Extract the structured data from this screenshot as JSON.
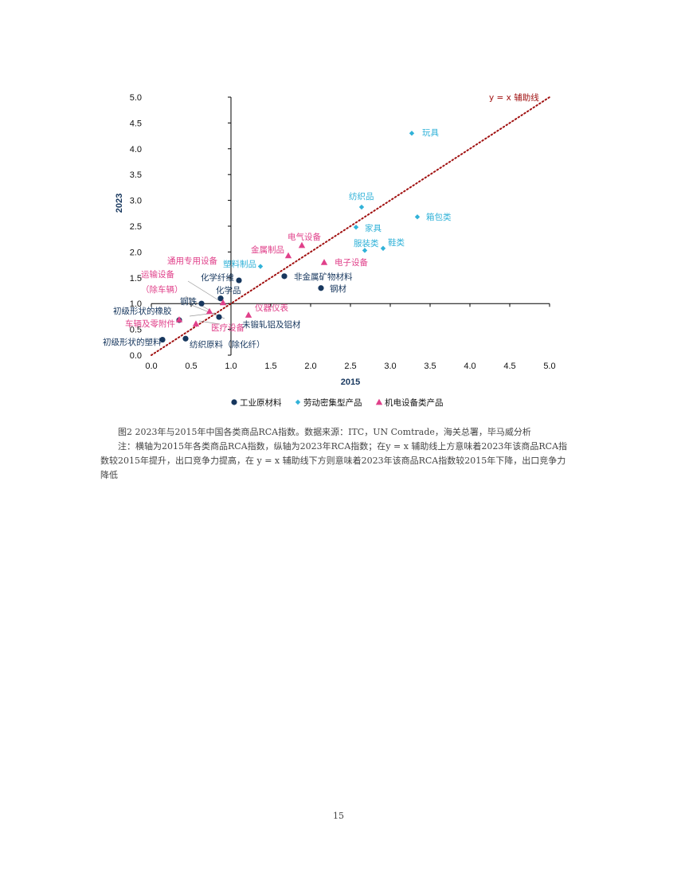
{
  "chart_data": {
    "type": "scatter",
    "xlabel": "2015",
    "ylabel": "2023",
    "xlim": [
      0,
      5
    ],
    "ylim": [
      0,
      5
    ],
    "x_ticks": [
      "0.0",
      "0.5",
      "1.0",
      "1.5",
      "2.0",
      "2.5",
      "3.0",
      "3.5",
      "4.0",
      "4.5",
      "5.0"
    ],
    "y_ticks": [
      "0.0",
      "0.5",
      "1.0",
      "1.5",
      "2.0",
      "2.5",
      "3.0",
      "3.5",
      "4.0",
      "4.5",
      "5.0"
    ],
    "grid": false,
    "legend_position": "bottom",
    "reference_line": {
      "label": "y = x 辅助线",
      "x": [
        0,
        5
      ],
      "y": [
        0,
        5
      ],
      "color": "#a01010",
      "style": "dotted"
    },
    "series": [
      {
        "name": "工业原材料",
        "marker": "circle",
        "color": "#17375e",
        "points": [
          {
            "label": "化学纤维",
            "x": 1.1,
            "y": 1.45
          },
          {
            "label": "化学品",
            "x": 0.87,
            "y": 1.1
          },
          {
            "label": "非金属矿物材料",
            "x": 1.67,
            "y": 1.53
          },
          {
            "label": "钢材",
            "x": 2.13,
            "y": 1.3
          },
          {
            "label": "钢铁",
            "x": 0.63,
            "y": 1.0
          },
          {
            "label": "初级形状的橡胶",
            "x": 0.35,
            "y": 0.68
          },
          {
            "label": "未锻轧铝及铝材",
            "x": 0.85,
            "y": 0.74
          },
          {
            "label": "初级形状的塑料",
            "x": 0.14,
            "y": 0.3
          },
          {
            "label": "纺织原料（除化纤）",
            "x": 0.43,
            "y": 0.32
          }
        ]
      },
      {
        "name": "劳动密集型产品",
        "marker": "diamond",
        "color": "#31b2d8",
        "points": [
          {
            "label": "玩具",
            "x": 3.27,
            "y": 4.3
          },
          {
            "label": "纺织品",
            "x": 2.64,
            "y": 2.87
          },
          {
            "label": "箱包类",
            "x": 3.34,
            "y": 2.68
          },
          {
            "label": "家具",
            "x": 2.57,
            "y": 2.48
          },
          {
            "label": "服装类",
            "x": 2.68,
            "y": 2.03
          },
          {
            "label": "鞋类",
            "x": 2.91,
            "y": 2.07
          },
          {
            "label": "塑料制品",
            "x": 1.37,
            "y": 1.72
          }
        ]
      },
      {
        "name": "机电设备类产品",
        "marker": "triangle",
        "color": "#e0408a",
        "points": [
          {
            "label": "电气设备",
            "x": 1.89,
            "y": 2.13
          },
          {
            "label": "金属制品",
            "x": 1.72,
            "y": 1.93
          },
          {
            "label": "电子设备",
            "x": 2.17,
            "y": 1.8
          },
          {
            "label": "通用专用设备",
            "x": 0.9,
            "y": 1.02
          },
          {
            "label": "运输设备（除车辆）",
            "x": 0.73,
            "y": 0.85
          },
          {
            "label": "仪器仪表",
            "x": 1.22,
            "y": 0.78
          },
          {
            "label": "车辆及零附件",
            "x": 0.56,
            "y": 0.61
          },
          {
            "label": "医疗设备",
            "x": 0.35,
            "y": 0.69
          }
        ]
      }
    ],
    "annotations": [
      {
        "id": "refline",
        "text": "y = x 辅助线",
        "color": "#a01010"
      },
      {
        "id": "wanju",
        "text": "玩具",
        "color": "#31b2d8"
      },
      {
        "id": "fangzhipin",
        "text": "纺织品",
        "color": "#31b2d8"
      },
      {
        "id": "xiangbao",
        "text": "箱包类",
        "color": "#31b2d8"
      },
      {
        "id": "jiaju",
        "text": "家具",
        "color": "#31b2d8"
      },
      {
        "id": "fuzhuang",
        "text": "服装类",
        "color": "#31b2d8"
      },
      {
        "id": "xielei",
        "text": "鞋类",
        "color": "#31b2d8"
      },
      {
        "id": "suliaozhipin",
        "text": "塑料制品",
        "color": "#31b2d8"
      },
      {
        "id": "dianqi",
        "text": "电气设备",
        "color": "#e0408a"
      },
      {
        "id": "jinshu",
        "text": "金属制品",
        "color": "#e0408a"
      },
      {
        "id": "dianzi",
        "text": "电子设备",
        "color": "#e0408a"
      },
      {
        "id": "tongyong",
        "text": "通用专用设备",
        "color": "#e0408a"
      },
      {
        "id": "yunshu1",
        "text": "运输设备",
        "color": "#e0408a"
      },
      {
        "id": "yunshu2",
        "text": "（除车辆）",
        "color": "#e0408a"
      },
      {
        "id": "yiqi",
        "text": "仪器仪表",
        "color": "#e0408a"
      },
      {
        "id": "cheliang",
        "text": "车辆及零附件",
        "color": "#e0408a"
      },
      {
        "id": "yiliao",
        "text": "医疗设备",
        "color": "#e0408a"
      },
      {
        "id": "huaxian",
        "text": "化学纤维",
        "color": "#17375e"
      },
      {
        "id": "huaxue",
        "text": "化学品",
        "color": "#17375e"
      },
      {
        "id": "feijinshu",
        "text": "非金属矿物材料",
        "color": "#17375e"
      },
      {
        "id": "gangcai",
        "text": "钢材",
        "color": "#17375e"
      },
      {
        "id": "gangtie",
        "text": "钢铁",
        "color": "#17375e"
      },
      {
        "id": "xiangjiao",
        "text": "初级形状的橡胶",
        "color": "#17375e"
      },
      {
        "id": "lvcai",
        "text": "未锻轧铝及铝材",
        "color": "#17375e"
      },
      {
        "id": "suliao",
        "text": "初级形状的塑料",
        "color": "#17375e"
      },
      {
        "id": "fangzhiyuanliao",
        "text": "纺织原料（除化纤）",
        "color": "#17375e"
      }
    ]
  },
  "caption": {
    "title": "图2  2023年与2015年中国各类商品RCA指数。数据来源：ITC，UN Comtrade，海关总署，毕马威分析",
    "note": "注：横轴为2015年各类商品RCA指数，纵轴为2023年RCA指数；在y = x 辅助线上方意味着2023年该商品RCA指数较2015年提升，出口竞争力提高，在 y = x 辅助线下方则意味着2023年该商品RCA指数较2015年下降，出口竞争力降低"
  },
  "page_number": "15"
}
